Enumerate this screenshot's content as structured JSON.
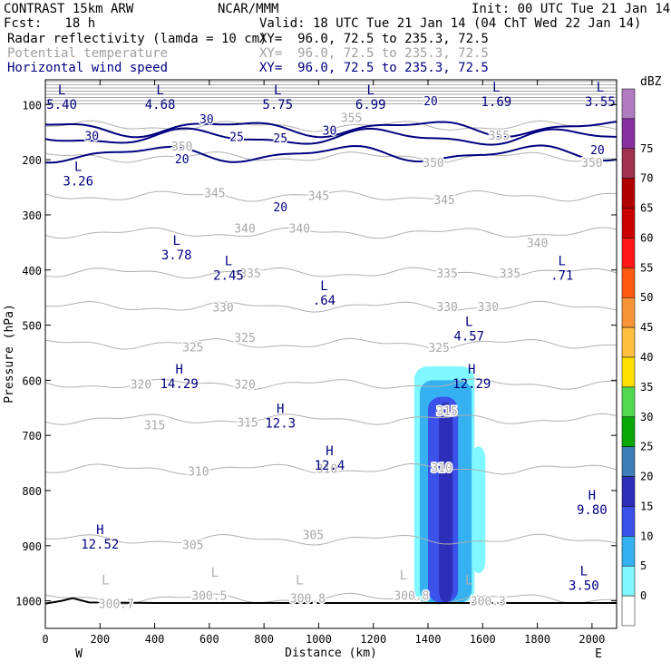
{
  "header": {
    "model": "CONTRAST 15km ARW",
    "org": "NCAR/MMM",
    "init": "Init: 00 UTC Tue 21 Jan 14",
    "fcst": "Fcst:   18 h",
    "valid": "Valid: 18 UTC Tue 21 Jan 14 (04 ChT Wed 22 Jan 14)",
    "fields": [
      {
        "name": "Radar reflectivity (lamda = 10 cm)",
        "xy": "XY=  96.0, 72.5 to 235.3, 72.5"
      },
      {
        "name": "Potential temperature",
        "xy": "XY=  96.0, 72.5 to 235.3, 72.5"
      },
      {
        "name": "Horizontal wind speed",
        "xy": "XY=  96.0, 72.5 to 235.3, 72.5"
      }
    ]
  },
  "chart_data": {
    "type": "contour",
    "xlabel": "Distance (km)",
    "ylabel": "Pressure (hPa)",
    "xlim": [
      0,
      2090
    ],
    "ylim": [
      1050,
      55
    ],
    "x_ticks": [
      0,
      200,
      400,
      600,
      800,
      1000,
      1200,
      1400,
      1600,
      1800,
      2000
    ],
    "y_ticks": [
      100,
      200,
      300,
      400,
      500,
      600,
      700,
      800,
      900,
      1000
    ],
    "x_end_labels": {
      "left": "W",
      "right": "E"
    },
    "colorbar": {
      "unit": "dBZ",
      "levels": [
        0,
        5,
        10,
        15,
        20,
        25,
        30,
        35,
        40,
        45,
        50,
        55,
        60,
        65,
        70,
        75
      ],
      "colors": [
        "#ffffff",
        "#7ff8ff",
        "#35b0f0",
        "#3c50ea",
        "#2d2fb8",
        "#3d7db8",
        "#08a808",
        "#50d850",
        "#ffe000",
        "#ffc040",
        "#f89438",
        "#ff5a10",
        "#ff1818",
        "#cc0000",
        "#b00000",
        "#a03050",
        "#8830a0",
        "#b07cc0"
      ]
    },
    "theta_contours": [
      {
        "label": "300.7",
        "x": 260,
        "p": 1005
      },
      {
        "label": "300.5",
        "x": 600,
        "p": 990
      },
      {
        "label": "300.8",
        "x": 960,
        "p": 995
      },
      {
        "label": "300.8",
        "x": 1340,
        "p": 990
      },
      {
        "label": "300.3",
        "x": 1620,
        "p": 1000
      },
      {
        "label": "305",
        "x": 540,
        "p": 898
      },
      {
        "label": "305",
        "x": 980,
        "p": 880
      },
      {
        "label": "310",
        "x": 560,
        "p": 765
      },
      {
        "label": "310",
        "x": 1030,
        "p": 760
      },
      {
        "label": "310",
        "x": 1450,
        "p": 758
      },
      {
        "label": "315",
        "x": 400,
        "p": 681
      },
      {
        "label": "315",
        "x": 740,
        "p": 676
      },
      {
        "label": "315",
        "x": 1470,
        "p": 655
      },
      {
        "label": "320",
        "x": 350,
        "p": 607
      },
      {
        "label": "320",
        "x": 730,
        "p": 607
      },
      {
        "label": "325",
        "x": 540,
        "p": 539
      },
      {
        "label": "325",
        "x": 730,
        "p": 522
      },
      {
        "label": "325",
        "x": 1440,
        "p": 540
      },
      {
        "label": "330",
        "x": 650,
        "p": 467
      },
      {
        "label": "330",
        "x": 1470,
        "p": 466
      },
      {
        "label": "330",
        "x": 1620,
        "p": 466
      },
      {
        "label": "335",
        "x": 750,
        "p": 405
      },
      {
        "label": "335",
        "x": 1470,
        "p": 405
      },
      {
        "label": "335",
        "x": 1700,
        "p": 405
      },
      {
        "label": "340",
        "x": 730,
        "p": 324
      },
      {
        "label": "340",
        "x": 930,
        "p": 324
      },
      {
        "label": "340",
        "x": 1800,
        "p": 350
      },
      {
        "label": "345",
        "x": 620,
        "p": 260
      },
      {
        "label": "345",
        "x": 1000,
        "p": 265
      },
      {
        "label": "345",
        "x": 1460,
        "p": 272
      },
      {
        "label": "350",
        "x": 500,
        "p": 175
      },
      {
        "label": "350",
        "x": 1420,
        "p": 205
      },
      {
        "label": "350",
        "x": 2000,
        "p": 205
      },
      {
        "label": "355",
        "x": 1120,
        "p": 123
      },
      {
        "label": "355",
        "x": 1660,
        "p": 155
      }
    ],
    "wind_contours": [
      {
        "label": "20",
        "x": 1410,
        "p": 93
      },
      {
        "label": "30",
        "x": 590,
        "p": 126
      },
      {
        "label": "30",
        "x": 1040,
        "p": 146
      },
      {
        "label": "30",
        "x": 170,
        "p": 156
      },
      {
        "label": "25",
        "x": 700,
        "p": 158
      },
      {
        "label": "25",
        "x": 860,
        "p": 160
      },
      {
        "label": "20",
        "x": 2020,
        "p": 182
      },
      {
        "label": "20",
        "x": 500,
        "p": 198
      },
      {
        "label": "20",
        "x": 860,
        "p": 285
      }
    ],
    "pressure_centers": [
      {
        "type": "L",
        "value": "5.40",
        "x": 60,
        "p": 98
      },
      {
        "type": "L",
        "value": "4.68",
        "x": 420,
        "p": 98
      },
      {
        "type": "L",
        "value": "5.75",
        "x": 850,
        "p": 98
      },
      {
        "type": "L",
        "value": "6.99",
        "x": 1190,
        "p": 98
      },
      {
        "type": "L",
        "value": "1.69",
        "x": 1650,
        "p": 93
      },
      {
        "type": "L",
        "value": "3.55",
        "x": 2030,
        "p": 93
      },
      {
        "type": "L",
        "value": "3.26",
        "x": 120,
        "p": 237
      },
      {
        "type": "L",
        "value": "3.78",
        "x": 480,
        "p": 371
      },
      {
        "type": "L",
        "value": "2.45",
        "x": 670,
        "p": 408
      },
      {
        "type": "L",
        "value": ".64",
        "x": 1020,
        "p": 453
      },
      {
        "type": "L",
        "value": "4.57",
        "x": 1550,
        "p": 518
      },
      {
        "type": "L",
        "value": ".71",
        "x": 1890,
        "p": 408
      },
      {
        "type": "H",
        "value": "14.29",
        "x": 490,
        "p": 604
      },
      {
        "type": "H",
        "value": "12.29",
        "x": 1560,
        "p": 604
      },
      {
        "type": "H",
        "value": "12.3",
        "x": 860,
        "p": 676
      },
      {
        "type": "H",
        "value": "12.4",
        "x": 1040,
        "p": 752
      },
      {
        "type": "H",
        "value": "9.80",
        "x": 2000,
        "p": 833
      },
      {
        "type": "H",
        "value": "12.52",
        "x": 200,
        "p": 895
      },
      {
        "type": "L",
        "value": "3.50",
        "x": 1970,
        "p": 970
      },
      {
        "type": "L",
        "value": "",
        "x": 220,
        "p": 987
      },
      {
        "type": "L",
        "value": "",
        "x": 620,
        "p": 973
      },
      {
        "type": "L",
        "value": "",
        "x": 930,
        "p": 987
      },
      {
        "type": "L",
        "value": "",
        "x": 1310,
        "p": 978
      },
      {
        "type": "L",
        "value": "",
        "x": 1550,
        "p": 987
      }
    ],
    "reflectivity_cells": [
      {
        "x0": 1350,
        "x1": 1570,
        "p_top": 575,
        "p_bot": 1003,
        "dbz": 5
      },
      {
        "x0": 1370,
        "x1": 1560,
        "p_top": 600,
        "p_bot": 1003,
        "dbz": 10
      },
      {
        "x0": 1560,
        "x1": 1610,
        "p_top": 720,
        "p_bot": 950,
        "dbz": 5
      },
      {
        "x0": 1400,
        "x1": 1510,
        "p_top": 630,
        "p_bot": 1003,
        "dbz": 15
      },
      {
        "x0": 1440,
        "x1": 1490,
        "p_top": 640,
        "p_bot": 1003,
        "dbz": 20
      }
    ],
    "surface_pressure": [
      {
        "x": 0,
        "p": 1005
      },
      {
        "x": 60,
        "p": 1000
      },
      {
        "x": 100,
        "p": 995
      },
      {
        "x": 160,
        "p": 1003
      },
      {
        "x": 400,
        "p": 1004
      },
      {
        "x": 1000,
        "p": 1004
      },
      {
        "x": 1600,
        "p": 1004
      },
      {
        "x": 2090,
        "p": 1004
      }
    ]
  }
}
